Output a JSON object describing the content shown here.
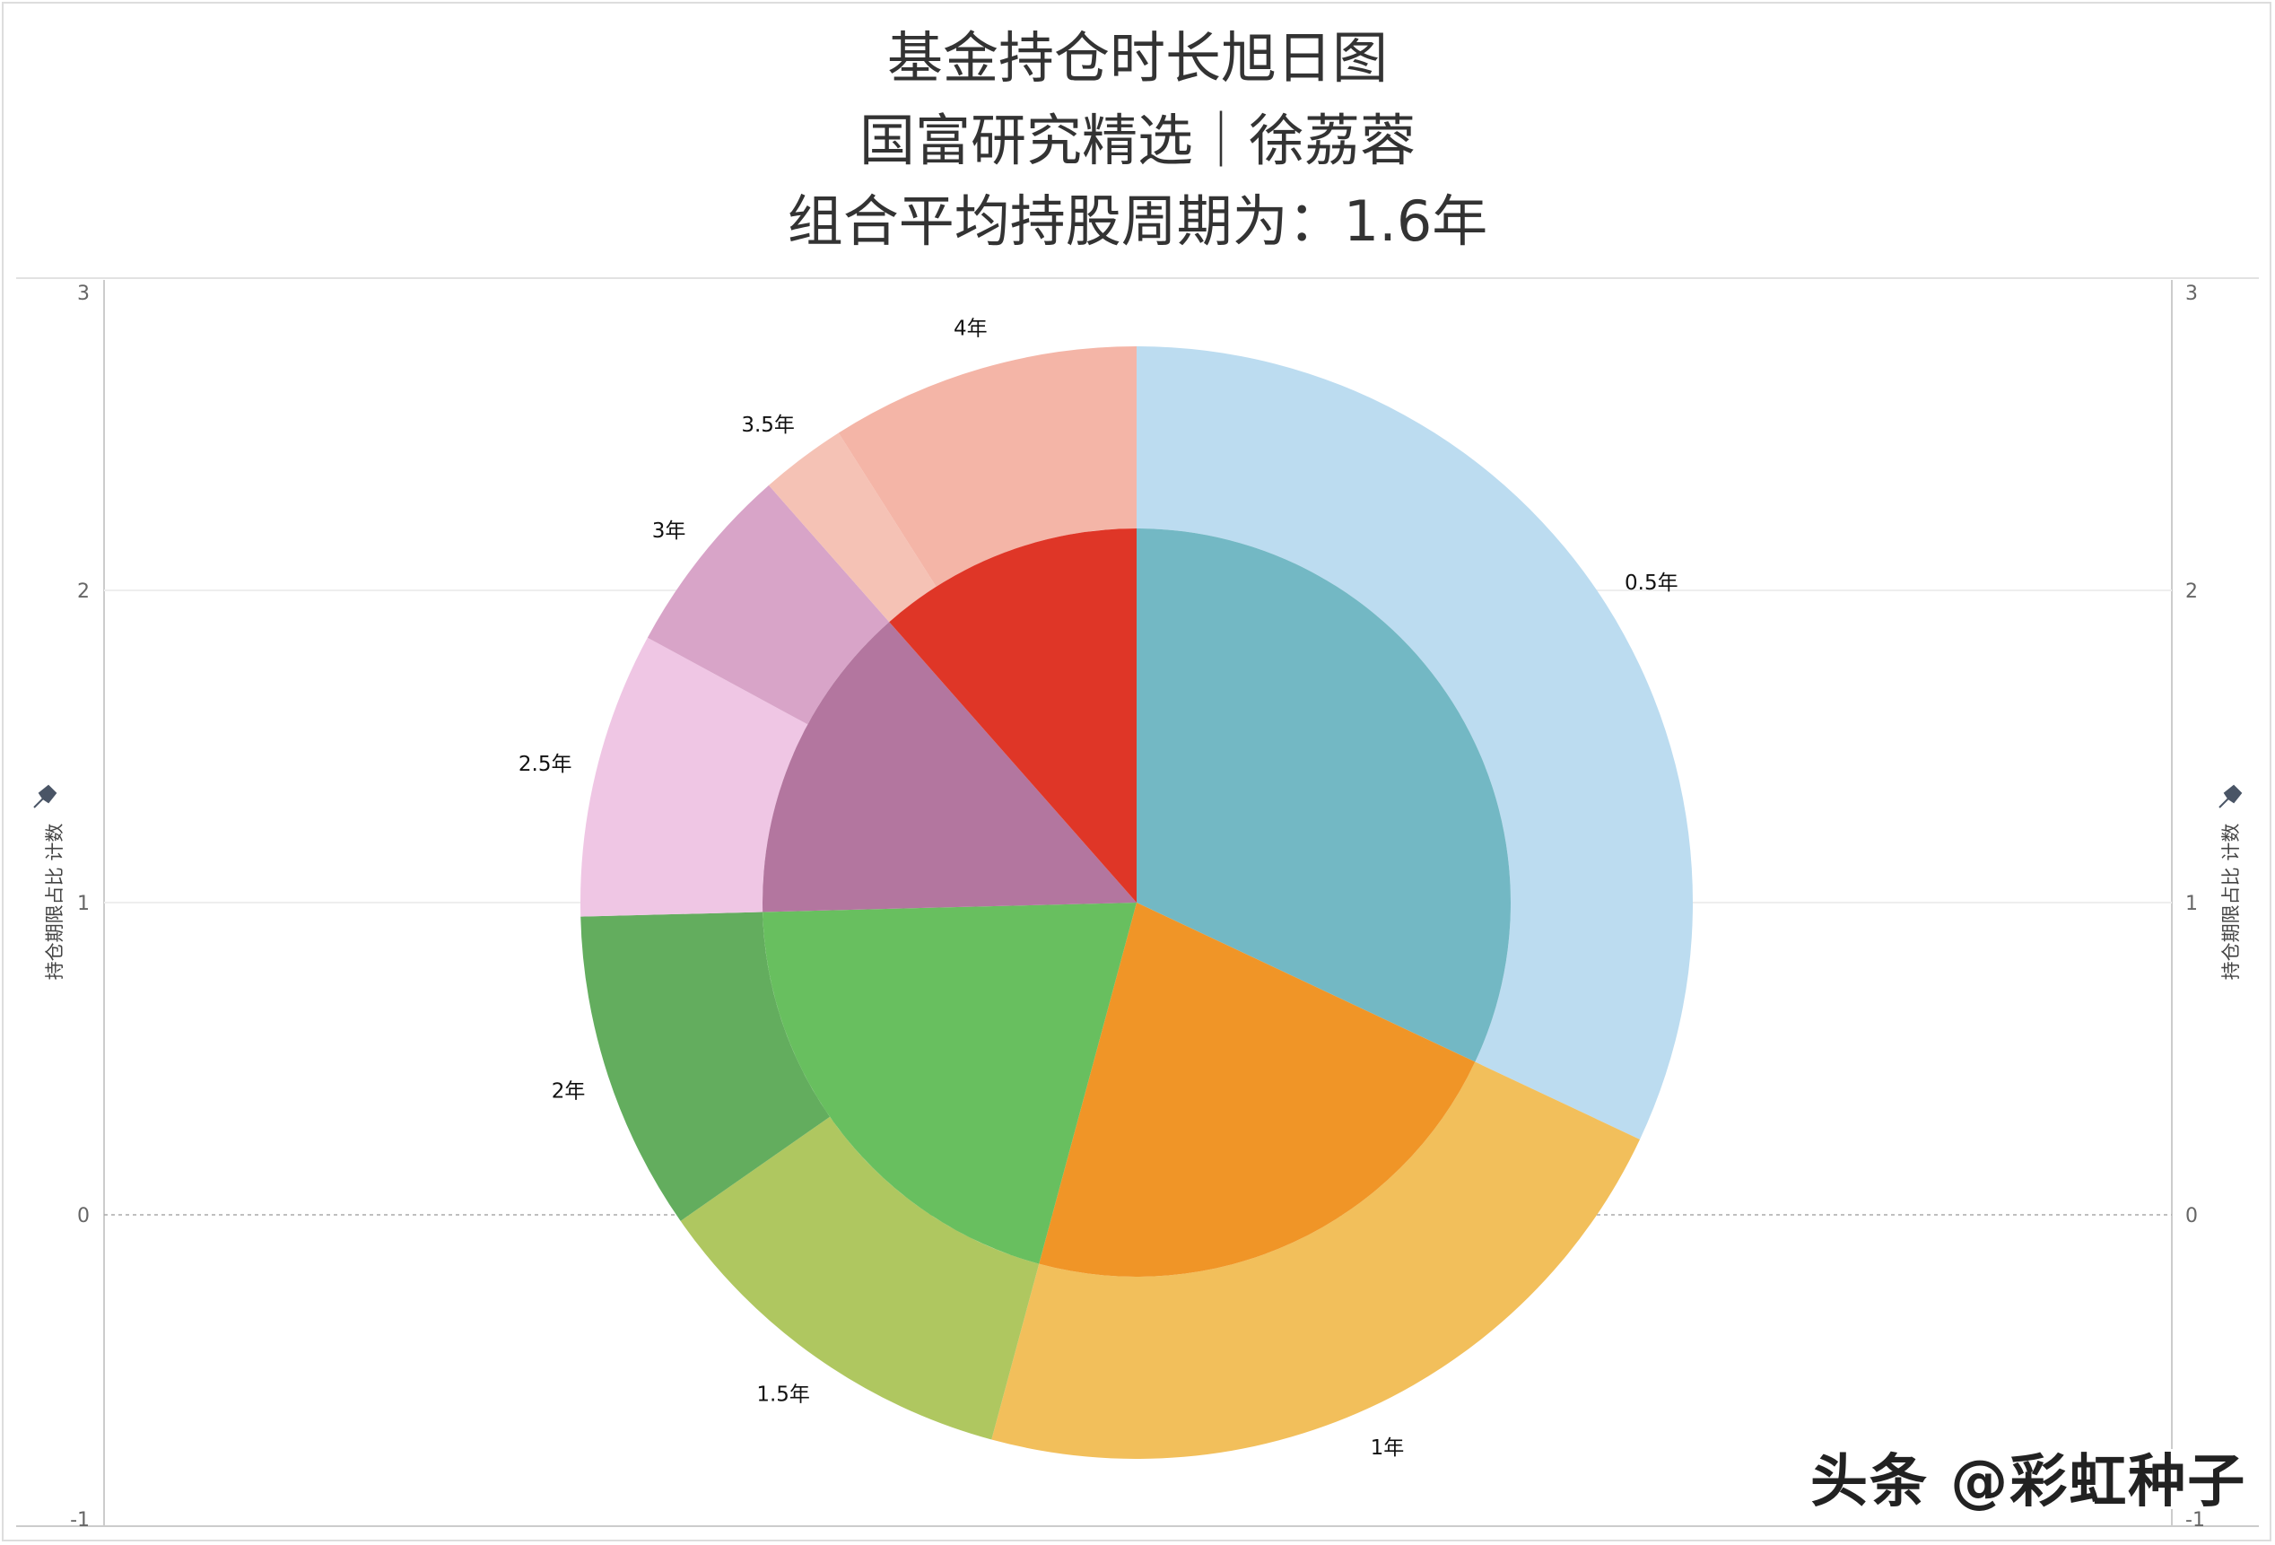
{
  "title": {
    "line1": "基金持仓时长旭日图",
    "line2": "国富研究精选｜徐荔蓉",
    "line3": "组合平均持股周期为：1.6年"
  },
  "axis": {
    "left_title": "持仓期限占比 计数",
    "right_title": "持仓期限占比 计数",
    "pin_icon": "pin-icon"
  },
  "watermark": "头条 @彩虹种子",
  "chart_data": {
    "type": "sunburst",
    "title": "基金持仓时长旭日图",
    "yaxis": {
      "ticks": [
        3,
        2,
        1,
        0,
        -1
      ],
      "ylim": [
        -1,
        3
      ],
      "grid": true
    },
    "outer_ring": [
      {
        "label": "0.5年",
        "value": 32.0,
        "color": "#bcdcf0"
      },
      {
        "label": "1年",
        "value": 22.2,
        "color": "#f2bf5b"
      },
      {
        "label": "1.5年",
        "value": 11.1,
        "color": "#afc760"
      },
      {
        "label": "2年",
        "value": 9.3,
        "color": "#63ad5e"
      },
      {
        "label": "2.5年",
        "value": 8.3,
        "color": "#efc6e4"
      },
      {
        "label": "3年",
        "value": 5.6,
        "color": "#d8a4c8"
      },
      {
        "label": "3.5年",
        "value": 2.5,
        "color": "#f5c2b5"
      },
      {
        "label": "4年",
        "value": 9.0,
        "color": "#f4b5a7"
      }
    ],
    "inner_ring": [
      {
        "value": 32.0,
        "color": "#73b8c4"
      },
      {
        "value": 22.2,
        "color": "#f09527"
      },
      {
        "value": 20.4,
        "color": "#68bf5f"
      },
      {
        "value": 13.9,
        "color": "#b3769f"
      },
      {
        "value": 11.5,
        "color": "#df3627"
      }
    ]
  }
}
